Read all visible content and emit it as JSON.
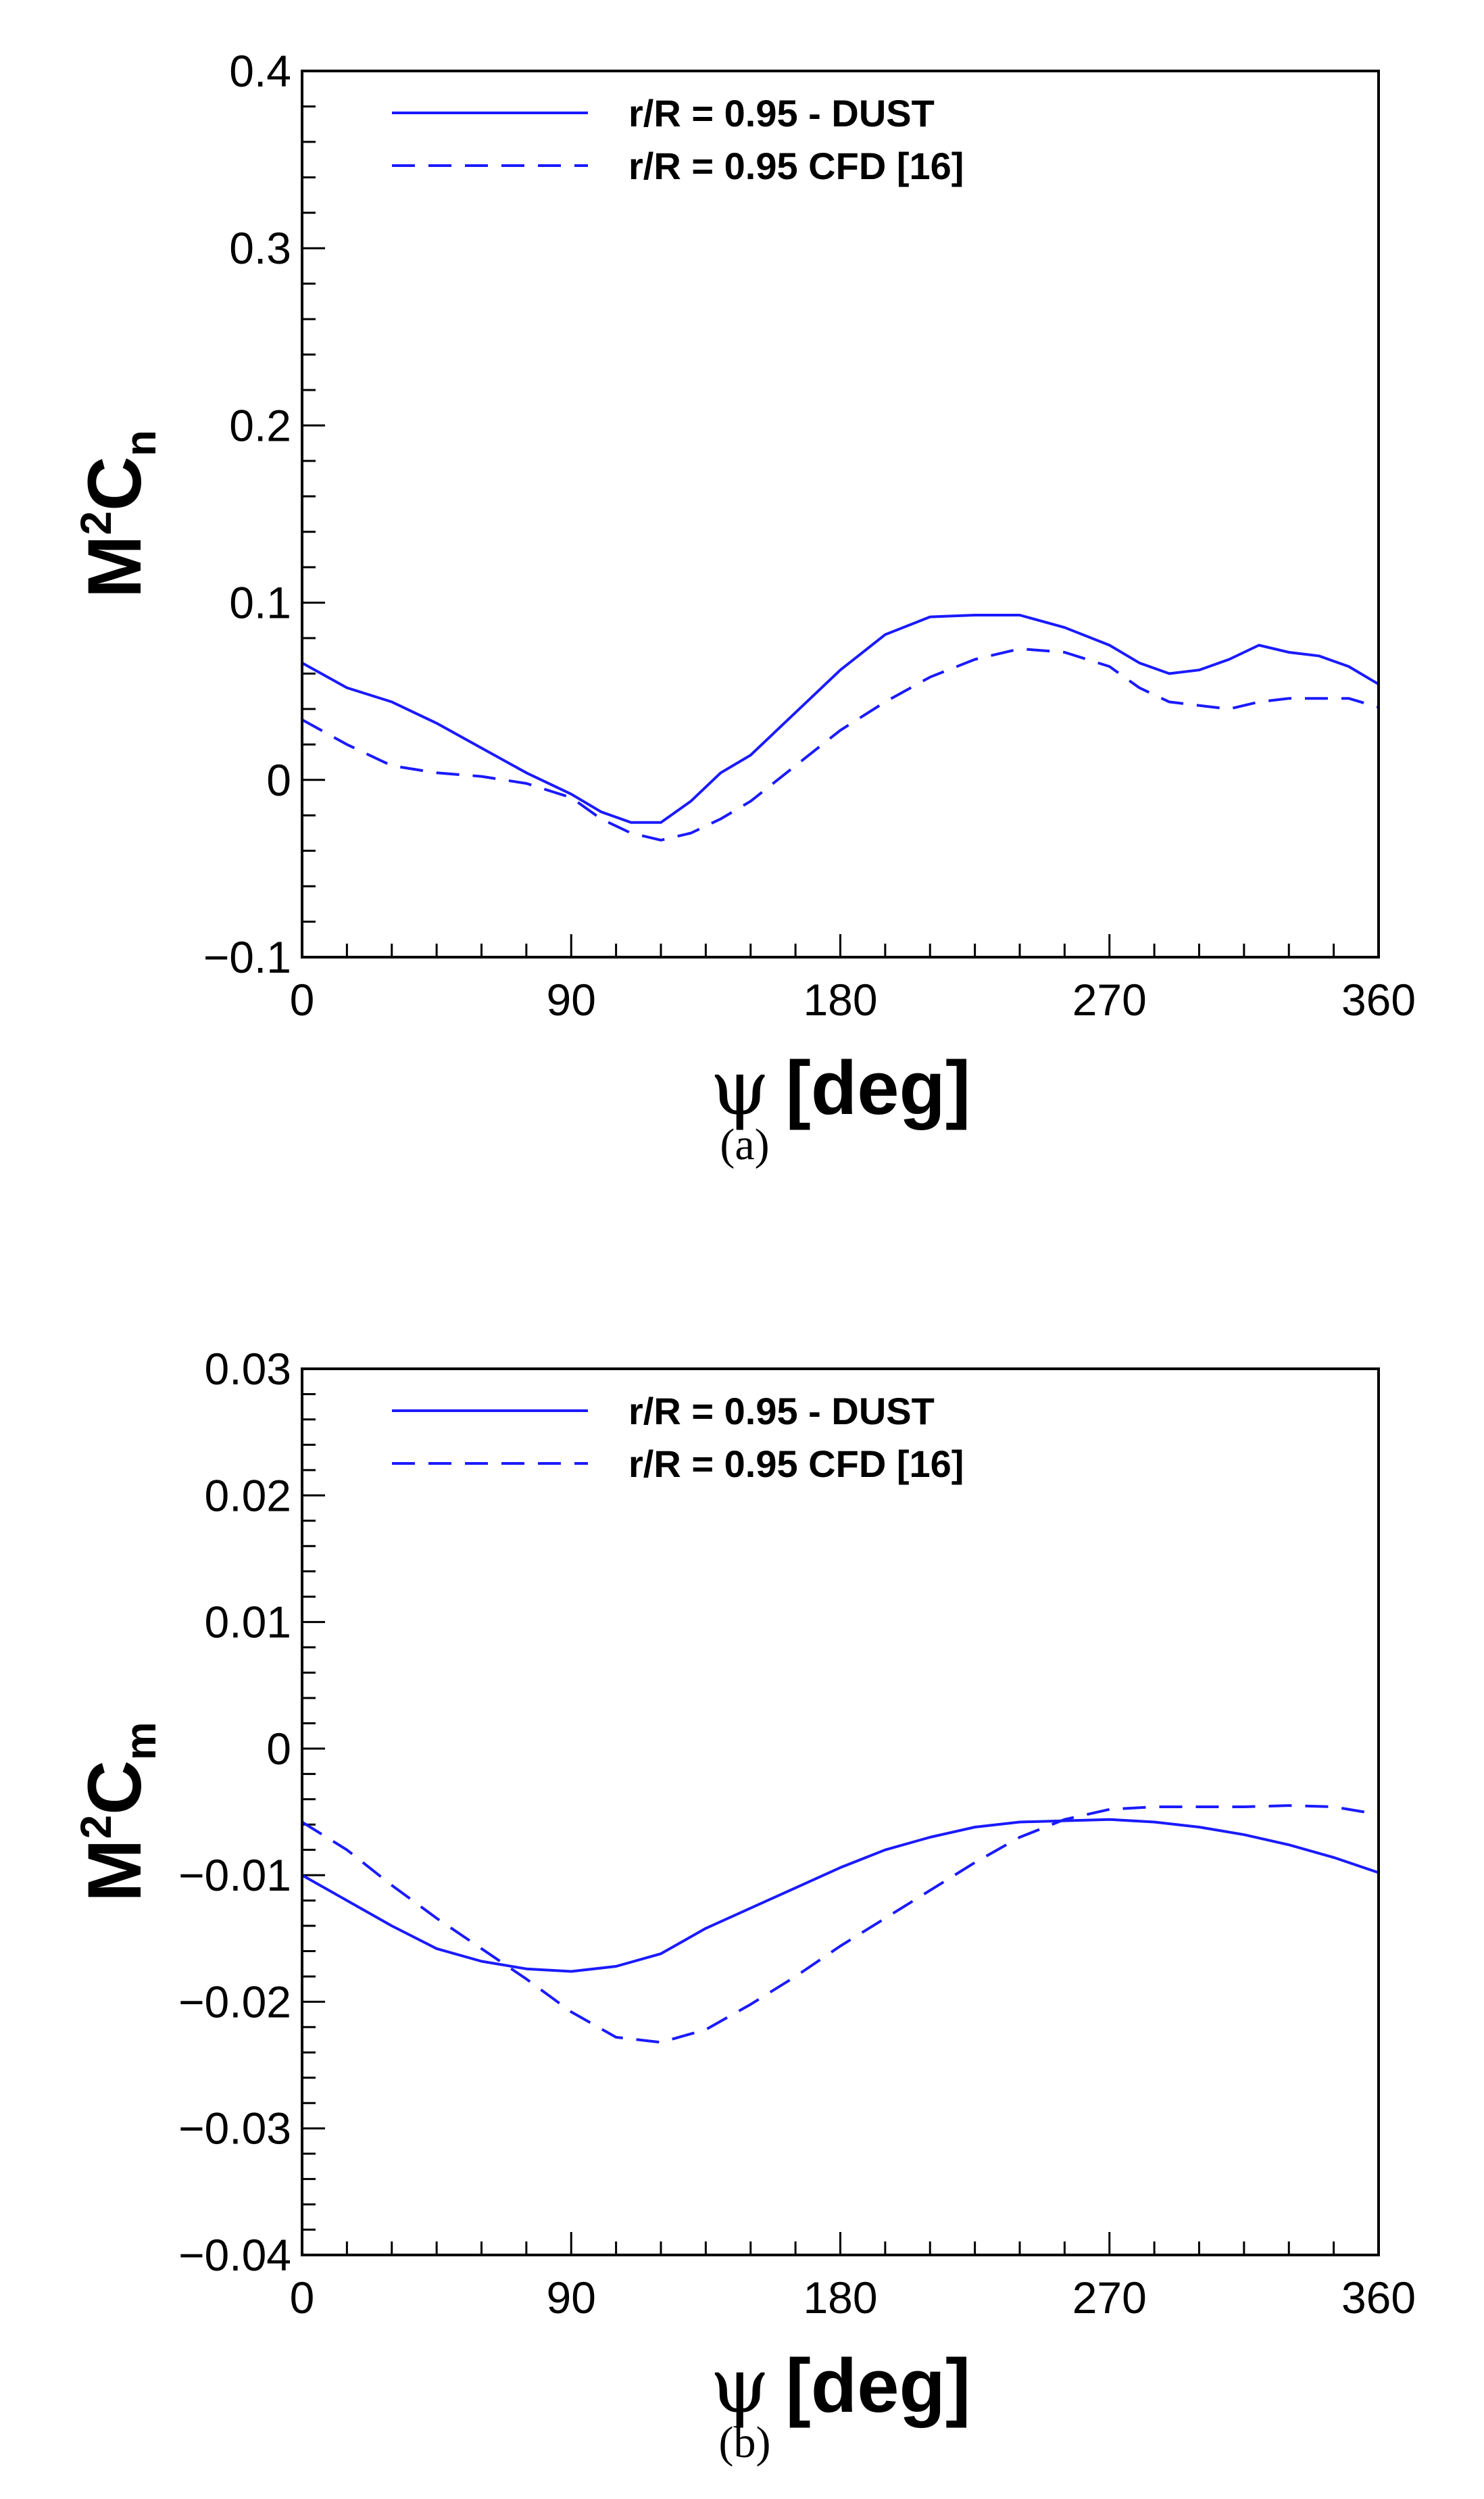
{
  "colors": {
    "series": "#1a1aff",
    "axis": "#000000"
  },
  "chart_data": [
    {
      "type": "line",
      "caption": "(a)",
      "xlabel_symbol": "ψ",
      "xlabel_unit": "[deg]",
      "ylabel_base": "M",
      "ylabel_sup": "2",
      "ylabel_var": "C",
      "ylabel_sub": "n",
      "xlim": [
        0,
        360
      ],
      "ylim": [
        -0.1,
        0.4
      ],
      "xticks": [
        0,
        90,
        180,
        270,
        360
      ],
      "xtick_labels": [
        "0",
        "90",
        "180",
        "270",
        "360"
      ],
      "yticks": [
        -0.1,
        0,
        0.1,
        0.2,
        0.3,
        0.4
      ],
      "ytick_labels": [
        "−0.1",
        "0",
        "0.1",
        "0.2",
        "0.3",
        "0.4"
      ],
      "legend_position": "top-left",
      "series": [
        {
          "name": "r/R = 0.95 - DUST",
          "style": "solid",
          "x": [
            0,
            15,
            30,
            45,
            60,
            75,
            90,
            100,
            110,
            120,
            130,
            140,
            150,
            165,
            180,
            195,
            210,
            225,
            240,
            255,
            270,
            280,
            290,
            300,
            310,
            320,
            330,
            340,
            350,
            360
          ],
          "y": [
            0.066,
            0.052,
            0.044,
            0.032,
            0.018,
            0.004,
            -0.008,
            -0.018,
            -0.024,
            -0.024,
            -0.012,
            0.004,
            0.014,
            0.038,
            0.062,
            0.082,
            0.092,
            0.093,
            0.093,
            0.086,
            0.076,
            0.066,
            0.06,
            0.062,
            0.068,
            0.076,
            0.072,
            0.07,
            0.064,
            0.054
          ]
        },
        {
          "name": "r/R = 0.95 CFD [16]",
          "style": "dashed",
          "x": [
            0,
            15,
            30,
            45,
            60,
            75,
            90,
            100,
            110,
            120,
            130,
            140,
            150,
            165,
            180,
            195,
            210,
            225,
            240,
            255,
            270,
            280,
            290,
            300,
            310,
            320,
            330,
            340,
            350,
            360
          ],
          "y": [
            0.034,
            0.02,
            0.008,
            0.004,
            0.002,
            -0.002,
            -0.01,
            -0.022,
            -0.03,
            -0.034,
            -0.03,
            -0.022,
            -0.012,
            0.008,
            0.028,
            0.044,
            0.058,
            0.068,
            0.074,
            0.072,
            0.064,
            0.052,
            0.044,
            0.042,
            0.04,
            0.044,
            0.046,
            0.046,
            0.046,
            0.041
          ]
        }
      ]
    },
    {
      "type": "line",
      "caption": "(b)",
      "xlabel_symbol": "ψ",
      "xlabel_unit": "[deg]",
      "ylabel_base": "M",
      "ylabel_sup": "2",
      "ylabel_var": "C",
      "ylabel_sub": "m",
      "xlim": [
        0,
        360
      ],
      "ylim": [
        -0.04,
        0.03
      ],
      "xticks": [
        0,
        90,
        180,
        270,
        360
      ],
      "xtick_labels": [
        "0",
        "90",
        "180",
        "270",
        "360"
      ],
      "yticks": [
        -0.04,
        -0.03,
        -0.02,
        -0.01,
        0,
        0.01,
        0.02,
        0.03
      ],
      "ytick_labels": [
        "−0.04",
        "−0.03",
        "−0.02",
        "−0.01",
        "0",
        "0.01",
        "0.02",
        "0.03"
      ],
      "legend_position": "top-left",
      "series": [
        {
          "name": "r/R = 0.95 - DUST",
          "style": "solid",
          "x": [
            0,
            15,
            30,
            45,
            60,
            75,
            90,
            105,
            120,
            135,
            150,
            165,
            180,
            195,
            210,
            225,
            240,
            255,
            270,
            285,
            300,
            315,
            330,
            345,
            360
          ],
          "y": [
            -0.01,
            -0.012,
            -0.014,
            -0.0158,
            -0.0168,
            -0.0174,
            -0.0176,
            -0.0172,
            -0.0162,
            -0.0142,
            -0.0126,
            -0.011,
            -0.0094,
            -0.008,
            -0.007,
            -0.0062,
            -0.0058,
            -0.0057,
            -0.0056,
            -0.0058,
            -0.0062,
            -0.0068,
            -0.0076,
            -0.0086,
            -0.0098
          ]
        },
        {
          "name": "r/R = 0.95 CFD [16]",
          "style": "dashed",
          "x": [
            0,
            15,
            30,
            45,
            60,
            75,
            90,
            105,
            120,
            135,
            150,
            165,
            180,
            195,
            210,
            225,
            240,
            255,
            270,
            285,
            300,
            315,
            330,
            345,
            360
          ],
          "y": [
            -0.0058,
            -0.008,
            -0.0108,
            -0.0134,
            -0.0158,
            -0.0182,
            -0.0208,
            -0.0228,
            -0.0232,
            -0.0222,
            -0.0202,
            -0.018,
            -0.0156,
            -0.0134,
            -0.0112,
            -0.009,
            -0.007,
            -0.0056,
            -0.0048,
            -0.0046,
            -0.0046,
            -0.0046,
            -0.0045,
            -0.0046,
            -0.0052
          ]
        }
      ]
    }
  ]
}
